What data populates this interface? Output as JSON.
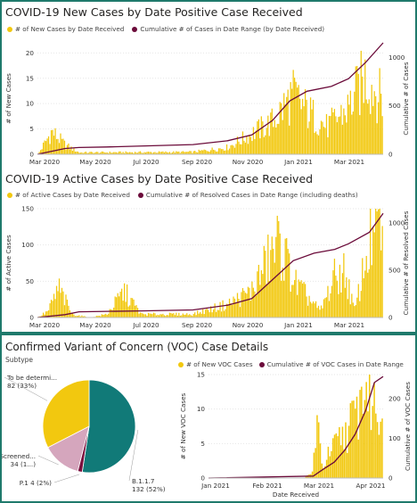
{
  "colors": {
    "bar": "#F2C80F",
    "line": "#6B0B3A",
    "teal": "#117A78",
    "pink": "#D5A6BD",
    "maroon": "#7A0F3D"
  },
  "panels": {
    "new_cases": {
      "title": "COVID-19 New Cases by Date Positive Case Received",
      "legend_bar": "# of New Cases by Date Received",
      "legend_line": "Cumulative # of Cases in Date Range (by Date Received)"
    },
    "active_cases": {
      "title": "COVID-19 Active Cases by Date Positive Case Received",
      "legend_bar": "# of Active Cases by Date Received",
      "legend_line": "Cumulative # of Resolved Cases in Date Range (including deaths)"
    },
    "voc": {
      "title": "Confirmed Variant of Concern (VOC) Case Details",
      "subtitle": "Subtype",
      "legend_bar": "# of New VOC Cases",
      "legend_line": "Cumulative # of VOC Cases in Date Range"
    }
  },
  "chart_data": [
    {
      "type": "bar",
      "title": "COVID-19 New Cases by Date Positive Case Received",
      "xlabel": "",
      "ylabel": "# of New Cases",
      "y2label": "Cumulative # of Cases",
      "x_ticks": [
        "Mar 2020",
        "May 2020",
        "Jul 2020",
        "Sep 2020",
        "Nov 2020",
        "Jan 2021",
        "Mar 2021"
      ],
      "ylim": [
        0,
        22
      ],
      "y_ticks": [
        0,
        5,
        10,
        15,
        20
      ],
      "y2lim": [
        0,
        1150
      ],
      "y2_ticks": [
        0,
        500,
        1000
      ],
      "bar_profile": [
        [
          0,
          0
        ],
        [
          0.04,
          5
        ],
        [
          0.08,
          2
        ],
        [
          0.12,
          0.4
        ],
        [
          0.45,
          0.5
        ],
        [
          0.55,
          1.5
        ],
        [
          0.68,
          7
        ],
        [
          0.74,
          13
        ],
        [
          0.79,
          9
        ],
        [
          0.84,
          6
        ],
        [
          0.9,
          10
        ],
        [
          0.95,
          17
        ],
        [
          1,
          12
        ]
      ],
      "series": [
        {
          "name": "# of New Cases by Date Received",
          "kind": "bars"
        },
        {
          "name": "Cumulative # of Cases in Date Range (by Date Received)",
          "kind": "line",
          "points": [
            [
              0,
              0
            ],
            [
              0.08,
              60
            ],
            [
              0.12,
              70
            ],
            [
              0.2,
              75
            ],
            [
              0.45,
              100
            ],
            [
              0.55,
              140
            ],
            [
              0.62,
              200
            ],
            [
              0.68,
              350
            ],
            [
              0.73,
              550
            ],
            [
              0.78,
              650
            ],
            [
              0.85,
              700
            ],
            [
              0.9,
              780
            ],
            [
              0.95,
              950
            ],
            [
              1,
              1150
            ]
          ]
        }
      ]
    },
    {
      "type": "bar",
      "title": "COVID-19 Active Cases by Date Positive Case Received",
      "xlabel": "",
      "ylabel": "# of Active Cases",
      "y2label": "Cumulative # of Resolved Cases",
      "x_ticks": [
        "Mar 2020",
        "May 2020",
        "Jul 2020",
        "Sep 2020",
        "Nov 2020",
        "Jan 2021",
        "Mar 2021"
      ],
      "ylim": [
        0,
        150
      ],
      "y_ticks": [
        0,
        50,
        100,
        150
      ],
      "y2lim": [
        0,
        1150
      ],
      "y2_ticks": [
        0,
        500,
        1000
      ],
      "bar_profile": [
        [
          0,
          0
        ],
        [
          0.03,
          10
        ],
        [
          0.06,
          45
        ],
        [
          0.1,
          5
        ],
        [
          0.15,
          0
        ],
        [
          0.2,
          5
        ],
        [
          0.25,
          40
        ],
        [
          0.3,
          5
        ],
        [
          0.45,
          5
        ],
        [
          0.55,
          20
        ],
        [
          0.62,
          40
        ],
        [
          0.66,
          80
        ],
        [
          0.7,
          115
        ],
        [
          0.75,
          50
        ],
        [
          0.82,
          10
        ],
        [
          0.86,
          60
        ],
        [
          0.89,
          70
        ],
        [
          0.92,
          10
        ],
        [
          0.96,
          110
        ],
        [
          1,
          145
        ]
      ],
      "series": [
        {
          "name": "# of Active Cases by Date Received",
          "kind": "bars"
        },
        {
          "name": "Cumulative # of Resolved Cases in Date Range (including deaths)",
          "kind": "line",
          "points": [
            [
              0,
              0
            ],
            [
              0.08,
              30
            ],
            [
              0.12,
              60
            ],
            [
              0.3,
              70
            ],
            [
              0.45,
              80
            ],
            [
              0.55,
              130
            ],
            [
              0.62,
              200
            ],
            [
              0.68,
              400
            ],
            [
              0.74,
              600
            ],
            [
              0.8,
              680
            ],
            [
              0.86,
              720
            ],
            [
              0.9,
              780
            ],
            [
              0.96,
              900
            ],
            [
              1,
              1100
            ]
          ]
        }
      ]
    },
    {
      "type": "pie",
      "title": "Subtype",
      "slices": [
        {
          "label": "B.1.1.7",
          "value": 132,
          "pct": "52%",
          "display": "B.1.1.7\n132 (52%)",
          "color": "#117A78"
        },
        {
          "label": "P.1",
          "value": 4,
          "pct": "2%",
          "display": "P.1 4 (2%)",
          "color": "#7A0F3D"
        },
        {
          "label": "Screened...",
          "value": 34,
          "pct": "",
          "display": "Screened...\n34 (1...)",
          "color": "#D5A6BD"
        },
        {
          "label": "To be determi...",
          "value": 82,
          "pct": "33%",
          "display": "To be determi...\n82 (33%)",
          "color": "#F2C80F"
        }
      ]
    },
    {
      "type": "bar",
      "title": "",
      "xlabel": "Date Received",
      "ylabel": "# of New VOC Cases",
      "y2label": "Cumulative # of VOC Cases",
      "x_ticks": [
        "Jan 2021",
        "Feb 2021",
        "Mar 2021",
        "Apr 2021"
      ],
      "ylim": [
        0,
        15
      ],
      "y_ticks": [
        0,
        5,
        10,
        15
      ],
      "y2lim": [
        0,
        260
      ],
      "y2_ticks": [
        0,
        100,
        200
      ],
      "bar_profile": [
        [
          0,
          0
        ],
        [
          0.55,
          0
        ],
        [
          0.6,
          1
        ],
        [
          0.62,
          10
        ],
        [
          0.65,
          2
        ],
        [
          0.7,
          4
        ],
        [
          0.75,
          6
        ],
        [
          0.8,
          8
        ],
        [
          0.85,
          10
        ],
        [
          0.9,
          15
        ],
        [
          0.95,
          12
        ],
        [
          1,
          10
        ]
      ],
      "series": [
        {
          "name": "# of New VOC Cases",
          "kind": "bars"
        },
        {
          "name": "Cumulative # of VOC Cases in Date Range",
          "kind": "line",
          "points": [
            [
              0,
              0
            ],
            [
              0.6,
              5
            ],
            [
              0.65,
              20
            ],
            [
              0.72,
              40
            ],
            [
              0.78,
              70
            ],
            [
              0.84,
              110
            ],
            [
              0.9,
              170
            ],
            [
              0.95,
              240
            ],
            [
              1,
              255
            ]
          ]
        }
      ]
    }
  ]
}
